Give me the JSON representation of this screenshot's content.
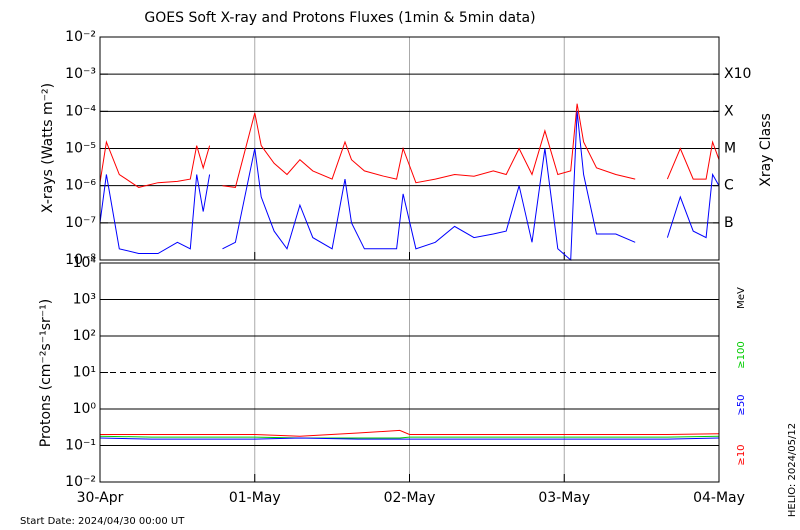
{
  "chart_data": [
    {
      "type": "line",
      "title": "GOES Soft X-ray and Protons Fluxes   (1min & 5min data)",
      "y_label": "X-rays (Watts m⁻²)",
      "y2_label": "Xray Class",
      "log_y": true,
      "grid": true,
      "x": [
        0,
        1,
        3,
        6,
        9,
        12,
        14,
        15,
        16,
        17,
        18,
        19,
        21,
        24,
        25,
        27,
        29,
        31,
        33,
        36,
        38,
        39,
        41,
        44,
        46,
        47,
        49,
        52,
        55,
        58,
        61,
        63,
        65,
        67,
        69,
        71,
        73,
        74,
        75,
        77,
        80,
        83,
        86,
        88,
        90,
        92,
        94,
        95,
        96
      ],
      "xlim": [
        0,
        96
      ],
      "xticks": [
        0,
        24,
        48,
        72,
        96
      ],
      "ylim": [
        1e-08,
        0.01
      ],
      "yticks": [
        {
          "value": 1e-08,
          "label": "10⁻⁸"
        },
        {
          "value": 1e-07,
          "label": "10⁻⁷"
        },
        {
          "value": 1e-06,
          "label": "10⁻⁶"
        },
        {
          "value": 1e-05,
          "label": "10⁻⁵"
        },
        {
          "value": 0.0001,
          "label": "10⁻⁴"
        },
        {
          "value": 0.001,
          "label": "10⁻³"
        },
        {
          "value": 0.01,
          "label": "10⁻²"
        }
      ],
      "class_levels": [
        {
          "value": 0.001,
          "label": "X10"
        },
        {
          "value": 0.0001,
          "label": "X"
        },
        {
          "value": 1e-05,
          "label": "M"
        },
        {
          "value": 1e-06,
          "label": "C"
        },
        {
          "value": 1e-07,
          "label": "B"
        }
      ],
      "series": [
        {
          "color": "#ff0000",
          "values": [
            1.2e-06,
            1.5e-05,
            2e-06,
            9e-07,
            1.2e-06,
            1.3e-06,
            1.5e-06,
            1.2e-05,
            3e-06,
            1.2e-05,
            null,
            1e-06,
            9e-07,
            9e-05,
            1.2e-05,
            4e-06,
            2e-06,
            5e-06,
            2.5e-06,
            1.5e-06,
            1.5e-05,
            5e-06,
            2.5e-06,
            1.8e-06,
            1.5e-06,
            1e-05,
            1.2e-06,
            1.5e-06,
            2e-06,
            1.8e-06,
            2.5e-06,
            2e-06,
            1e-05,
            2e-06,
            3e-05,
            2e-06,
            2.5e-06,
            0.00016,
            1.5e-05,
            3e-06,
            2e-06,
            1.5e-06,
            null,
            1.5e-06,
            1e-05,
            1.5e-06,
            1.5e-06,
            1.5e-05,
            5e-06
          ]
        },
        {
          "color": "#0000ff",
          "values": [
            1e-07,
            2e-06,
            2e-08,
            1.5e-08,
            1.5e-08,
            3e-08,
            2e-08,
            2e-06,
            2e-07,
            2e-06,
            null,
            2e-08,
            3e-08,
            1e-05,
            5e-07,
            6e-08,
            2e-08,
            3e-07,
            4e-08,
            2e-08,
            1.5e-06,
            1e-07,
            2e-08,
            2e-08,
            2e-08,
            6e-07,
            2e-08,
            3e-08,
            8e-08,
            4e-08,
            5e-08,
            6e-08,
            1e-06,
            3e-08,
            1e-05,
            2e-08,
            1e-08,
            0.0001,
            2e-06,
            5e-08,
            5e-08,
            3e-08,
            null,
            4e-08,
            5e-07,
            6e-08,
            4e-08,
            2e-06,
            1e-06
          ]
        }
      ]
    },
    {
      "type": "line",
      "y_label": "Protons (cm⁻²s⁻¹sr⁻¹)",
      "legend_title": "MeV",
      "log_y": true,
      "grid": true,
      "dashed_grid_value": 10,
      "x": [
        0,
        8,
        16,
        24,
        31,
        40,
        46.5,
        48,
        56,
        64,
        72,
        80,
        88,
        96
      ],
      "xlim": [
        0,
        96
      ],
      "xticks": [
        {
          "value": 0,
          "label": "30-Apr"
        },
        {
          "value": 24,
          "label": "01-May"
        },
        {
          "value": 48,
          "label": "02-May"
        },
        {
          "value": 72,
          "label": "03-May"
        },
        {
          "value": 96,
          "label": "04-May"
        }
      ],
      "ylim": [
        0.01,
        10000
      ],
      "yticks": [
        {
          "value": 0.01,
          "label": "10⁻²"
        },
        {
          "value": 0.1,
          "label": "10⁻¹"
        },
        {
          "value": 1,
          "label": "10⁰"
        },
        {
          "value": 10,
          "label": "10¹"
        },
        {
          "value": 100,
          "label": "10²"
        },
        {
          "value": 1000,
          "label": "10³"
        },
        {
          "value": 10000,
          "label": "10⁴"
        }
      ],
      "series": [
        {
          "name": "≥100",
          "color": "#00cc00",
          "values": [
            0.18,
            0.17,
            0.17,
            0.17,
            0.16,
            0.16,
            0.16,
            0.17,
            0.17,
            0.17,
            0.17,
            0.17,
            0.17,
            0.18
          ]
        },
        {
          "name": "≥50",
          "color": "#0000ff",
          "values": [
            0.16,
            0.15,
            0.15,
            0.15,
            0.16,
            0.15,
            0.15,
            0.15,
            0.15,
            0.15,
            0.15,
            0.15,
            0.15,
            0.16
          ]
        },
        {
          "name": "≥10",
          "color": "#ff0000",
          "values": [
            0.2,
            0.2,
            0.2,
            0.2,
            0.18,
            0.22,
            0.26,
            0.2,
            0.2,
            0.2,
            0.2,
            0.2,
            0.2,
            0.21
          ]
        }
      ]
    }
  ],
  "footer": {
    "start_date": "Start Date: 2024/04/30 00:00 UT",
    "helio": "HELIO: 2024/05/12"
  }
}
